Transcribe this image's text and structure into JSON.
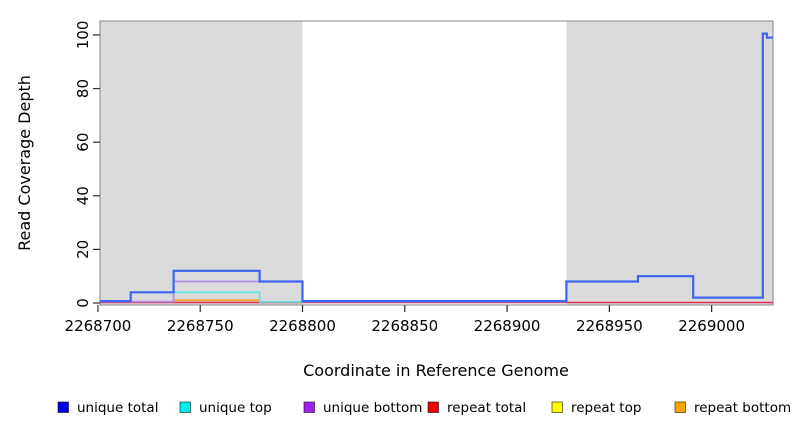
{
  "chart_data": {
    "type": "line",
    "subtype": "step-coverage-plot",
    "title": "",
    "xlabel": "Coordinate in Reference Genome",
    "ylabel": "Read Coverage Depth",
    "xlim": [
      2268701,
      2269030
    ],
    "ylim": [
      -0.75,
      105.2
    ],
    "x_ticks": [
      "2268700",
      "2268750",
      "2268800",
      "2268850",
      "2268900",
      "2268950",
      "2269000"
    ],
    "x_tick_values": [
      2268700,
      2268750,
      2268800,
      2268850,
      2268900,
      2268950,
      2269000
    ],
    "y_ticks": [
      "0",
      "20",
      "40",
      "60",
      "80",
      "100"
    ],
    "y_tick_values": [
      0,
      20,
      40,
      60,
      80,
      100
    ],
    "grid": false,
    "box_color": "#8a8a8a",
    "tick_color": "#2b2b2b",
    "masked_region_color": "#dbdbdb",
    "masked_regions": [
      {
        "x0": 2268701,
        "x1": 2268800
      },
      {
        "x0": 2268929,
        "x1": 2269030
      }
    ],
    "series": [
      {
        "name": "repeat top",
        "legend_color": "#ffff00",
        "line_color": "#c8dc50",
        "width": 1.4,
        "points": [
          [
            2268779,
            0.35
          ],
          [
            2268800,
            0.35
          ]
        ]
      },
      {
        "name": "repeat bottom",
        "legend_color": "#ffa500",
        "line_color": "#ffa028",
        "width": 1.8,
        "points": [
          [
            2268737,
            0.3
          ],
          [
            2268737,
            1
          ],
          [
            2268779,
            1
          ],
          [
            2268779,
            0.3
          ]
        ]
      },
      {
        "name": "repeat total",
        "legend_color": "#ee0000",
        "line_color": "#dc3350",
        "width": 1.5,
        "points": [
          [
            2268701,
            0.2
          ],
          [
            2269030,
            0.2
          ]
        ]
      },
      {
        "name": "unique top",
        "legend_color": "#00eeee",
        "line_color": "#5be6e6",
        "width": 1.6,
        "points": [
          [
            2268737,
            0.4
          ],
          [
            2268737,
            4
          ],
          [
            2268779,
            4
          ],
          [
            2268779,
            0.4
          ],
          [
            2268800,
            0.4
          ]
        ]
      },
      {
        "name": "unique bottom",
        "legend_color": "#a020f0",
        "line_color": "#b48ce8",
        "width": 1.8,
        "points": [
          [
            2268701,
            0.5
          ],
          [
            2268737,
            0.5
          ],
          [
            2268737,
            8
          ],
          [
            2268800,
            8
          ],
          [
            2268800,
            0.5
          ],
          [
            2268929,
            0.5
          ]
        ]
      },
      {
        "name": "unique total",
        "legend_color": "#0000ee",
        "line_color": "#3e64f2",
        "width": 2.2,
        "points": [
          [
            2268701,
            0.7
          ],
          [
            2268716,
            0.7
          ],
          [
            2268716,
            4
          ],
          [
            2268737,
            4
          ],
          [
            2268737,
            12
          ],
          [
            2268779,
            12
          ],
          [
            2268779,
            8
          ],
          [
            2268800,
            8
          ],
          [
            2268800,
            0.7
          ],
          [
            2268929,
            0.7
          ],
          [
            2268929,
            8
          ],
          [
            2268964,
            8
          ],
          [
            2268964,
            10
          ],
          [
            2268991,
            10
          ],
          [
            2268991,
            2
          ],
          [
            2269025,
            2
          ],
          [
            2269025,
            100.5
          ],
          [
            2269027,
            100.5
          ],
          [
            2269027,
            99
          ],
          [
            2269030,
            99
          ]
        ]
      }
    ],
    "legend": [
      {
        "label": "unique total",
        "color": "#0000ee"
      },
      {
        "label": "unique top",
        "color": "#00eeee"
      },
      {
        "label": "unique bottom",
        "color": "#a020f0"
      },
      {
        "label": "repeat total",
        "color": "#ee0000"
      },
      {
        "label": "repeat top",
        "color": "#ffff00"
      },
      {
        "label": "repeat bottom",
        "color": "#ffa500"
      }
    ],
    "legend_position": "bottom"
  }
}
